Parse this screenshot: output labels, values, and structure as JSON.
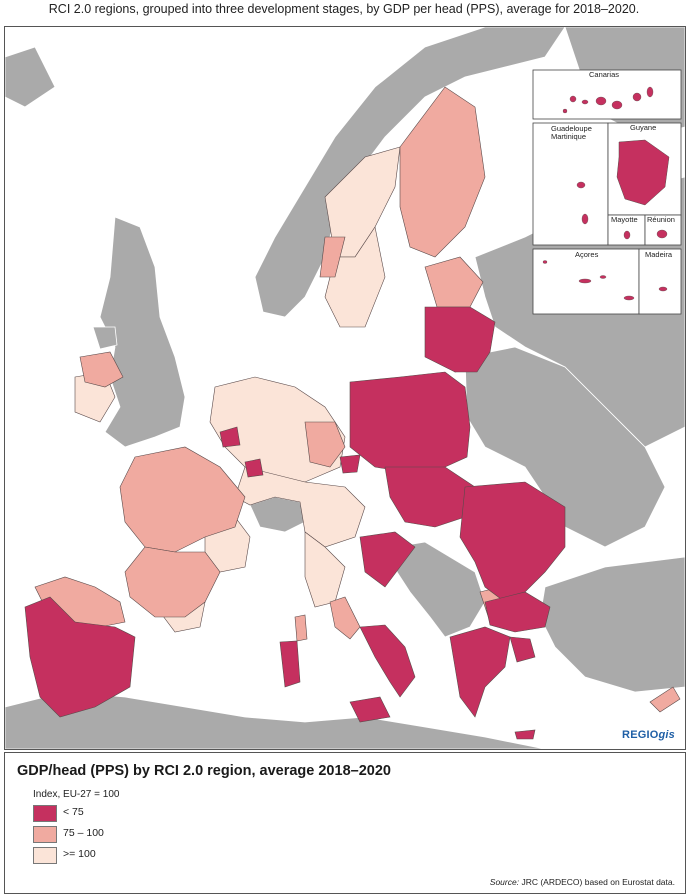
{
  "title": "RCI 2.0 regions, grouped into three development stages, by GDP per head (PPS), average for 2018–2020.",
  "brand": {
    "prefix": "REGIO",
    "suffix": "gis"
  },
  "insets": [
    {
      "label": "Canarias"
    },
    {
      "label": "Guadeloupe\nMartinique"
    },
    {
      "label": "Guyane"
    },
    {
      "label": "Mayotte"
    },
    {
      "label": "Réunion"
    },
    {
      "label": "Açores"
    },
    {
      "label": "Madeira"
    }
  ],
  "legend": {
    "title": "GDP/head (PPS) by RCI 2.0 region, average 2018–2020",
    "subtitle": "Index, EU-27 = 100",
    "items": [
      {
        "label": "< 75",
        "color": "#c5305f"
      },
      {
        "label": "75 – 100",
        "color": "#f0aaa0"
      },
      {
        "label": ">= 100",
        "color": "#fbe4d8"
      }
    ]
  },
  "source": {
    "prefix": "Source:",
    "text": "JRC (ARDECO) based on Eurostat data."
  },
  "colors": {
    "non_eu_land": "#aaaaaa",
    "sea": "#ffffff",
    "low": "#c5305f",
    "mid": "#f0aaa0",
    "high": "#fbe4d8",
    "border": "#5a4a4a"
  }
}
